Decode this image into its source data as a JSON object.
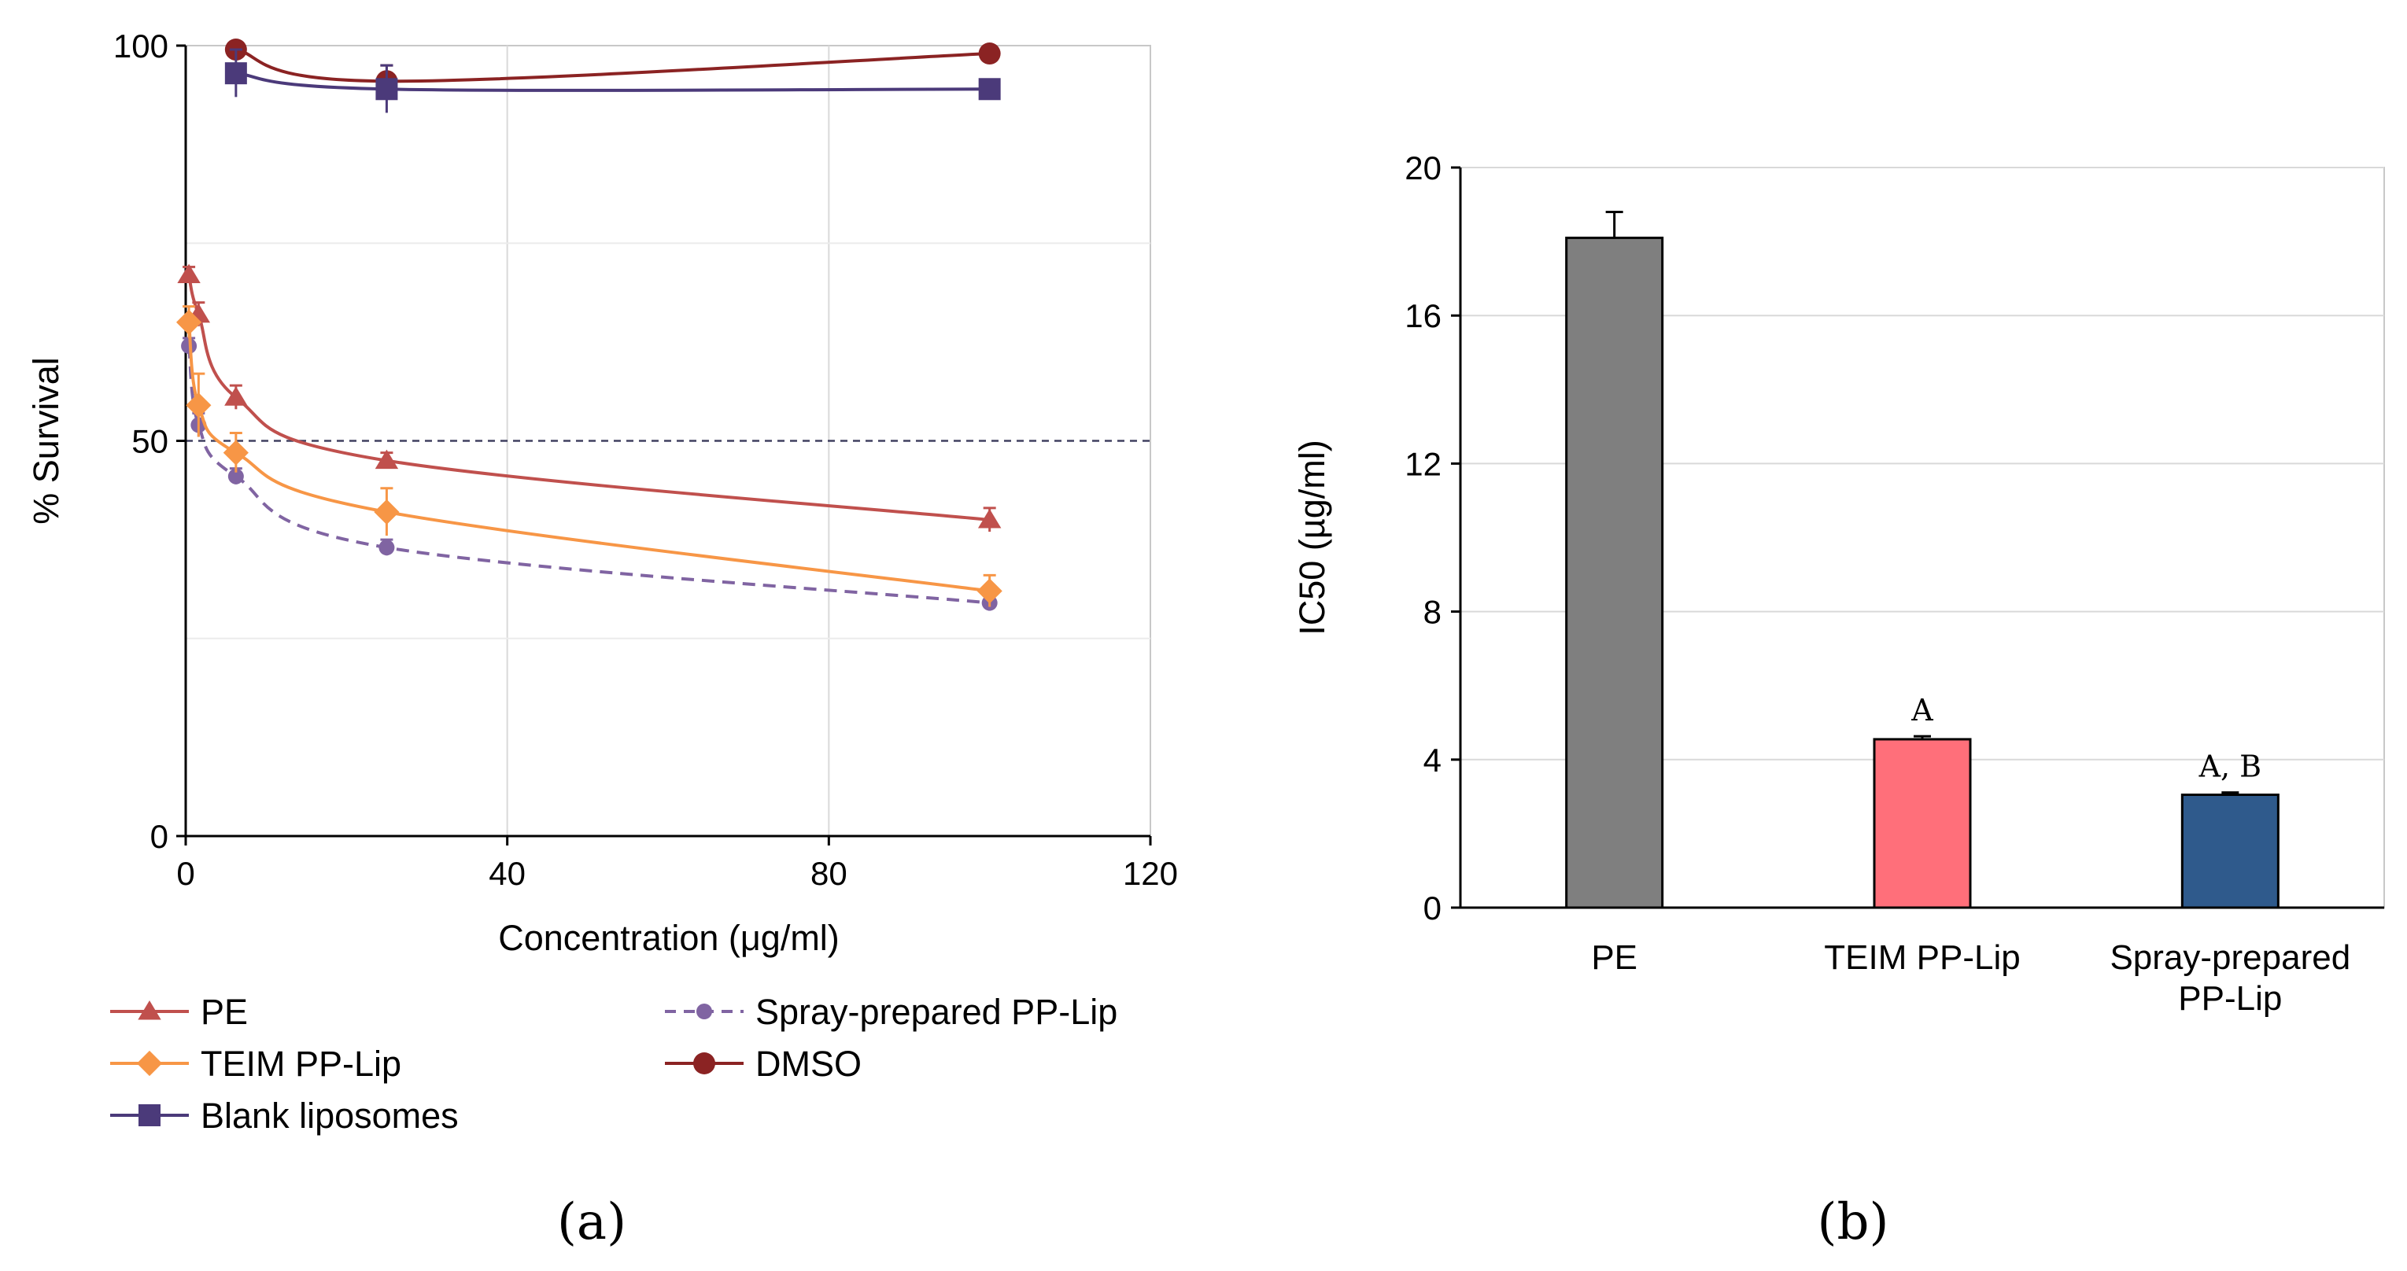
{
  "panel_a_label": "(a)",
  "panel_b_label": "(b)",
  "colors": {
    "PE": "#c0504d",
    "TEIM": "#f79646",
    "Spray": "#8064a2",
    "DMSO": "#8b2323",
    "Blank": "#4b3a7a",
    "bar_PE": "#7f7f7f",
    "bar_TEIM": "#ff6f7a",
    "bar_Spray": "#2f5a8c",
    "ref_line": "#404060"
  },
  "chart_data": [
    {
      "type": "line",
      "title": "",
      "xlabel": "Concentration (μg/ml)",
      "ylabel": "% Survival",
      "xlim": [
        0,
        120
      ],
      "ylim": [
        0,
        100
      ],
      "xticks": [
        0,
        40,
        80,
        120
      ],
      "yticks": [
        0,
        50,
        100
      ],
      "reference_line": 50,
      "grid": true,
      "legend_position": "bottom",
      "series": [
        {
          "name": "PE",
          "key": "PE",
          "marker": "triangle",
          "dashed": false,
          "x": [
            0.4,
            1.6,
            6.25,
            25,
            100
          ],
          "y": [
            71,
            66,
            55.5,
            47.5,
            40
          ],
          "err": [
            1.0,
            1.5,
            1.5,
            1.0,
            1.5
          ]
        },
        {
          "name": "Spray-prepared PP-Lip",
          "key": "Spray",
          "marker": "circle",
          "dashed": true,
          "x": [
            0.4,
            1.6,
            6.25,
            25,
            100
          ],
          "y": [
            62,
            52,
            45.5,
            36.5,
            29.5
          ],
          "err": [
            1.0,
            1.5,
            1.0,
            1.0,
            1.0
          ]
        },
        {
          "name": "TEIM PP-Lip",
          "key": "TEIM",
          "marker": "diamond",
          "dashed": false,
          "x": [
            0.4,
            1.6,
            6.25,
            25,
            100
          ],
          "y": [
            65,
            54.5,
            48.5,
            41,
            31
          ],
          "err": [
            2.0,
            4.0,
            2.5,
            3.0,
            2.0
          ]
        },
        {
          "name": "DMSO",
          "key": "DMSO",
          "marker": "circle",
          "dashed": false,
          "x": [
            6.25,
            25,
            100
          ],
          "y": [
            99.5,
            95.5,
            99
          ],
          "err": [
            1.0,
            2.0,
            1.0
          ]
        },
        {
          "name": "Blank liposomes",
          "key": "Blank",
          "marker": "square",
          "dashed": false,
          "x": [
            6.25,
            25,
            100
          ],
          "y": [
            96.5,
            94.5,
            94.5
          ],
          "err": [
            3.0,
            3.0,
            0.5
          ]
        }
      ]
    },
    {
      "type": "bar",
      "title": "",
      "xlabel": "",
      "ylabel": "IC50 (µg/ml)",
      "ylim": [
        0,
        20
      ],
      "yticks": [
        0,
        4,
        8,
        12,
        16,
        20
      ],
      "grid": true,
      "categories": [
        "PE",
        "TEIM PP-Lip",
        "Spray-prepared PP-Lip"
      ],
      "category_lines": [
        [
          "PE"
        ],
        [
          "TEIM PP-Lip"
        ],
        [
          "Spray-prepared",
          "PP-Lip"
        ]
      ],
      "values": [
        18.1,
        4.55,
        3.05
      ],
      "errors": [
        0.7,
        0.08,
        0.06
      ],
      "bar_color_keys": [
        "bar_PE",
        "bar_TEIM",
        "bar_Spray"
      ],
      "annotations": [
        "",
        "A",
        "A, B"
      ]
    }
  ]
}
